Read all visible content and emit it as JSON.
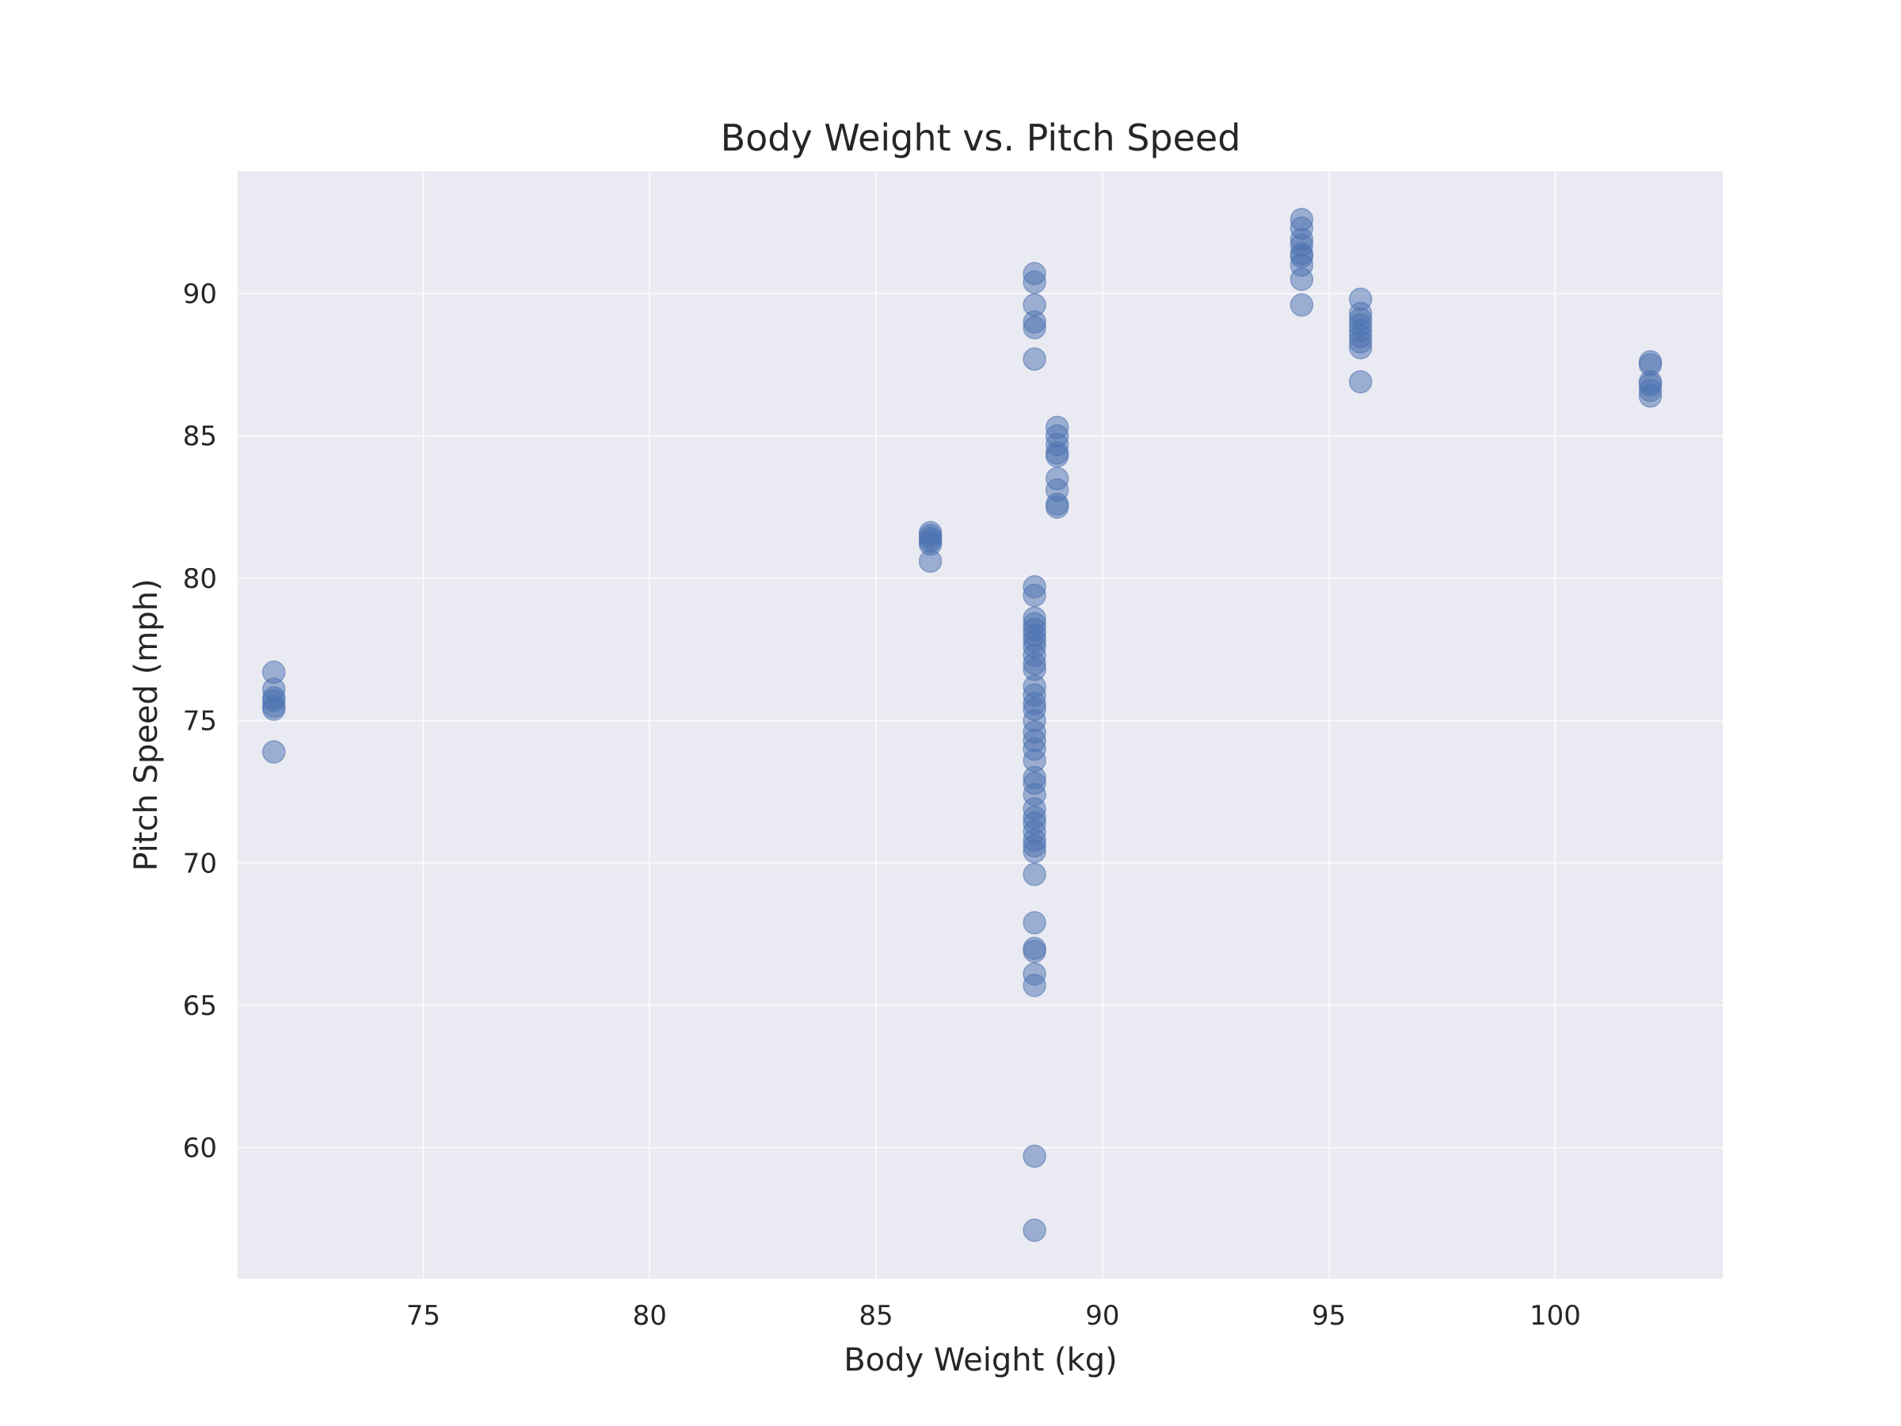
{
  "chart_data": {
    "type": "scatter",
    "title": "Body Weight vs. Pitch Speed",
    "xlabel": "Body Weight (kg)",
    "ylabel": "Pitch Speed (mph)",
    "xlim": [
      70.9,
      103.7
    ],
    "ylim": [
      55.4,
      94.3
    ],
    "xticks": [
      75,
      80,
      85,
      90,
      95,
      100
    ],
    "yticks": [
      60,
      65,
      70,
      75,
      80,
      85,
      90
    ],
    "grid": true,
    "legend": "none",
    "point_color": "#4c72b0",
    "background_color": "#eaeaf2",
    "series": [
      {
        "points": [
          [
            71.7,
            76.7
          ],
          [
            71.7,
            76.1
          ],
          [
            71.7,
            75.8
          ],
          [
            71.7,
            75.7
          ],
          [
            71.7,
            75.5
          ],
          [
            71.7,
            75.4
          ],
          [
            71.7,
            73.9
          ],
          [
            86.2,
            81.6
          ],
          [
            86.2,
            81.5
          ],
          [
            86.2,
            81.4
          ],
          [
            86.2,
            81.3
          ],
          [
            86.2,
            81.2
          ],
          [
            86.2,
            80.6
          ],
          [
            88.5,
            90.7
          ],
          [
            88.5,
            90.4
          ],
          [
            88.5,
            89.6
          ],
          [
            88.5,
            89.0
          ],
          [
            88.5,
            88.8
          ],
          [
            88.5,
            87.7
          ],
          [
            88.5,
            79.7
          ],
          [
            88.5,
            79.4
          ],
          [
            88.5,
            78.6
          ],
          [
            88.5,
            78.4
          ],
          [
            88.5,
            78.2
          ],
          [
            88.5,
            78.0
          ],
          [
            88.5,
            77.8
          ],
          [
            88.5,
            77.6
          ],
          [
            88.5,
            77.3
          ],
          [
            88.5,
            77.0
          ],
          [
            88.5,
            76.8
          ],
          [
            88.5,
            76.2
          ],
          [
            88.5,
            75.9
          ],
          [
            88.5,
            75.6
          ],
          [
            88.5,
            75.4
          ],
          [
            88.5,
            75.0
          ],
          [
            88.5,
            74.6
          ],
          [
            88.5,
            74.3
          ],
          [
            88.5,
            74.0
          ],
          [
            88.5,
            73.6
          ],
          [
            88.5,
            73.0
          ],
          [
            88.5,
            72.8
          ],
          [
            88.5,
            72.4
          ],
          [
            88.5,
            71.9
          ],
          [
            88.5,
            71.6
          ],
          [
            88.5,
            71.4
          ],
          [
            88.5,
            71.1
          ],
          [
            88.5,
            70.8
          ],
          [
            88.5,
            70.6
          ],
          [
            88.5,
            70.4
          ],
          [
            88.5,
            69.6
          ],
          [
            88.5,
            67.9
          ],
          [
            88.5,
            67.0
          ],
          [
            88.5,
            66.9
          ],
          [
            88.5,
            66.1
          ],
          [
            88.5,
            65.7
          ],
          [
            88.5,
            59.7
          ],
          [
            88.5,
            57.1
          ],
          [
            89.0,
            85.3
          ],
          [
            89.0,
            85.0
          ],
          [
            89.0,
            84.7
          ],
          [
            89.0,
            84.4
          ],
          [
            89.0,
            84.3
          ],
          [
            89.0,
            83.5
          ],
          [
            89.0,
            83.1
          ],
          [
            89.0,
            82.6
          ],
          [
            89.0,
            82.5
          ],
          [
            94.4,
            92.6
          ],
          [
            94.4,
            92.3
          ],
          [
            94.4,
            91.9
          ],
          [
            94.4,
            91.7
          ],
          [
            94.4,
            91.4
          ],
          [
            94.4,
            91.3
          ],
          [
            94.4,
            91.0
          ],
          [
            94.4,
            90.5
          ],
          [
            94.4,
            89.6
          ],
          [
            95.7,
            89.8
          ],
          [
            95.7,
            89.3
          ],
          [
            95.7,
            89.1
          ],
          [
            95.7,
            88.9
          ],
          [
            95.7,
            88.7
          ],
          [
            95.7,
            88.5
          ],
          [
            95.7,
            88.3
          ],
          [
            95.7,
            88.1
          ],
          [
            95.7,
            86.9
          ],
          [
            102.1,
            87.6
          ],
          [
            102.1,
            87.5
          ],
          [
            102.1,
            86.9
          ],
          [
            102.1,
            86.8
          ],
          [
            102.1,
            86.6
          ],
          [
            102.1,
            86.4
          ]
        ]
      }
    ]
  }
}
